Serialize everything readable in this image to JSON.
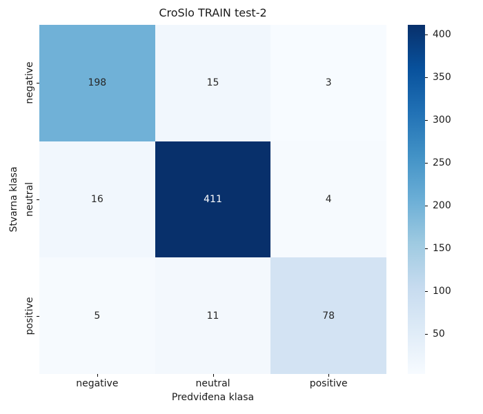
{
  "chart_data": {
    "type": "heatmap",
    "title": "CroSlo TRAIN test-2",
    "xlabel": "Predviđena klasa",
    "ylabel": "Stvarna klasa",
    "x_categories": [
      "negative",
      "neutral",
      "positive"
    ],
    "y_categories": [
      "negative",
      "neutral",
      "positive"
    ],
    "values": [
      [
        198,
        15,
        3
      ],
      [
        16,
        411,
        4
      ],
      [
        5,
        11,
        78
      ]
    ],
    "cell_colors": [
      [
        "#70b1d7",
        "#f1f7fd",
        "#f7fbff"
      ],
      [
        "#f1f7fd",
        "#08306b",
        "#f6fafe"
      ],
      [
        "#f6fafe",
        "#f3f8fd",
        "#d3e3f3"
      ]
    ],
    "cell_text_colors": [
      [
        "#262626",
        "#262626",
        "#262626"
      ],
      [
        "#262626",
        "#ffffff",
        "#262626"
      ],
      [
        "#262626",
        "#262626",
        "#262626"
      ]
    ],
    "colormap": "Blues",
    "grid": false,
    "legend_position": "right",
    "colorbar": {
      "vmin": 3,
      "vmax": 411,
      "ticks": [
        50,
        100,
        150,
        200,
        250,
        300,
        350,
        400
      ],
      "gradient_stops": [
        "#f7fbff",
        "#deebf7",
        "#c6dbef",
        "#9ecae1",
        "#6baed6",
        "#4292c6",
        "#2171b5",
        "#08519c",
        "#08306b"
      ]
    }
  },
  "colors": {
    "background": "#ffffff",
    "text": "#1a1a1a",
    "tick": "#000000"
  }
}
